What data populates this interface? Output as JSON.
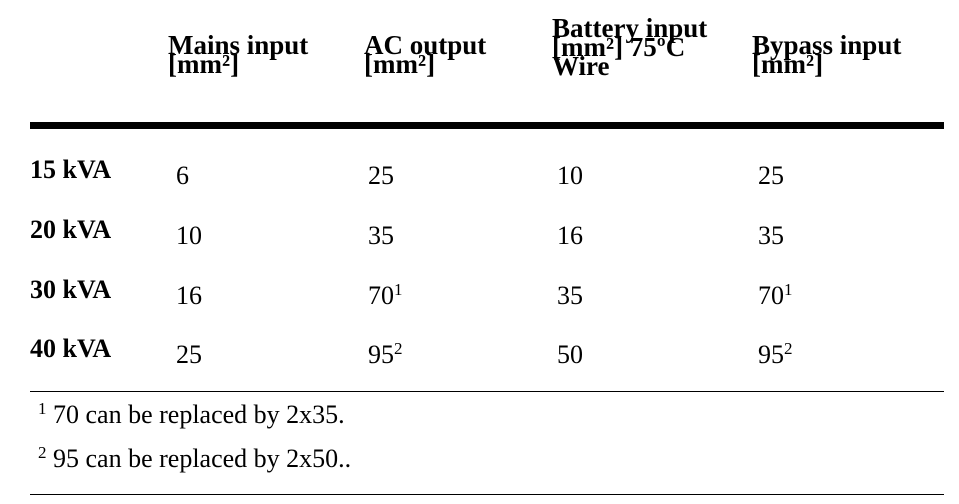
{
  "table": {
    "columns": [
      {
        "lines": [
          "Mains input",
          "[mm²]"
        ]
      },
      {
        "lines": [
          "AC output",
          "[mm²]"
        ]
      },
      {
        "lines": [
          "Battery input",
          "[mm²] 75ºC",
          "Wire"
        ]
      },
      {
        "lines": [
          "Bypass input",
          "[mm²]"
        ]
      }
    ],
    "rows": [
      {
        "label": "15 kVA",
        "cells": [
          {
            "v": "6",
            "sup": ""
          },
          {
            "v": "25",
            "sup": ""
          },
          {
            "v": "10",
            "sup": ""
          },
          {
            "v": "25",
            "sup": ""
          }
        ]
      },
      {
        "label": "20 kVA",
        "cells": [
          {
            "v": "10",
            "sup": ""
          },
          {
            "v": "35",
            "sup": ""
          },
          {
            "v": "16",
            "sup": ""
          },
          {
            "v": "35",
            "sup": ""
          }
        ]
      },
      {
        "label": "30 kVA",
        "cells": [
          {
            "v": "16",
            "sup": ""
          },
          {
            "v": "70",
            "sup": "1"
          },
          {
            "v": "35",
            "sup": ""
          },
          {
            "v": "70",
            "sup": "1"
          }
        ]
      },
      {
        "label": "40 kVA",
        "cells": [
          {
            "v": "25",
            "sup": ""
          },
          {
            "v": "95",
            "sup": "2"
          },
          {
            "v": "50",
            "sup": ""
          },
          {
            "v": "95",
            "sup": "2"
          }
        ]
      }
    ]
  },
  "footnotes": [
    {
      "mark": "1",
      "text": " 70 can be replaced by 2x35."
    },
    {
      "mark": "2",
      "text": " 95 can be replaced by 2x50.."
    }
  ]
}
